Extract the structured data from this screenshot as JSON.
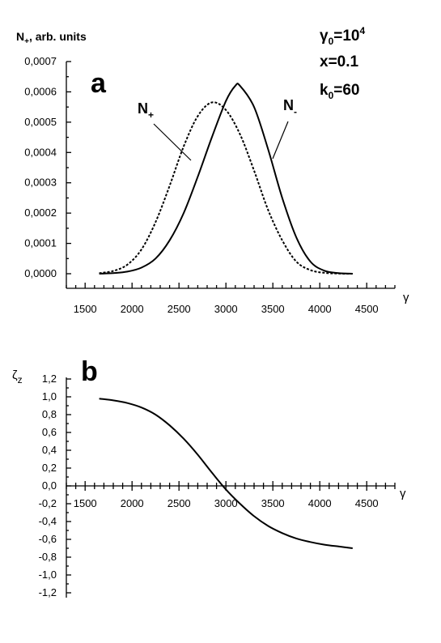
{
  "chart_data": [
    {
      "type": "line",
      "panel_label": "a",
      "ylabel_main": "N",
      "ylabel_sub": "+",
      "ylabel_rest": ", arb. units",
      "xlabel": "γ",
      "xlim": [
        1300,
        4800
      ],
      "ylim": [
        0,
        0.0007
      ],
      "xticks": [
        "1500",
        "2000",
        "2500",
        "3000",
        "3500",
        "4000",
        "4500"
      ],
      "xtick_values": [
        1500,
        2000,
        2500,
        3000,
        3500,
        4000,
        4500
      ],
      "yticks": [
        "0,0000",
        "0,0001",
        "0,0002",
        "0,0003",
        "0,0004",
        "0,0005",
        "0,0006",
        "0,0007"
      ],
      "ytick_values": [
        0,
        0.0001,
        0.0002,
        0.0003,
        0.0004,
        0.0005,
        0.0006,
        0.0007
      ],
      "params": {
        "gamma0": {
          "main": "γ",
          "sub": "0",
          "eq": "=10",
          "sup": "4"
        },
        "x": "x=0.1",
        "k0": {
          "main": "k",
          "sub": "0",
          "eq": "=60"
        }
      },
      "series": [
        {
          "name": "N+",
          "label_main": "N",
          "label_sub": "+",
          "style": "dashed",
          "x": [
            1650,
            1800,
            1950,
            2100,
            2250,
            2400,
            2550,
            2700,
            2850,
            3000,
            3150,
            3300,
            3450,
            3600,
            3750,
            3900,
            4050,
            4200,
            4350
          ],
          "y": [
            2e-06,
            9e-06,
            3e-05,
            8e-05,
            0.00017,
            0.00029,
            0.00042,
            0.00052,
            0.000565,
            0.00054,
            0.00046,
            0.00034,
            0.00021,
            0.00011,
            4e-05,
            1.2e-05,
            3e-06,
            5e-07,
            0.0
          ]
        },
        {
          "name": "N-",
          "label_main": "N",
          "label_sub": "-",
          "style": "solid",
          "x": [
            1650,
            1800,
            1950,
            2100,
            2250,
            2400,
            2550,
            2700,
            2850,
            3000,
            3100,
            3150,
            3300,
            3450,
            3600,
            3750,
            3900,
            4050,
            4200,
            4350
          ],
          "y": [
            0.0,
            2e-06,
            7e-06,
            2e-05,
            5e-05,
            0.00011,
            0.0002,
            0.00032,
            0.00045,
            0.00057,
            0.00062,
            0.00062,
            0.00055,
            0.00041,
            0.00025,
            0.00012,
            4e-05,
            1e-05,
            2e-06,
            0.0
          ]
        }
      ]
    },
    {
      "type": "line",
      "panel_label": "b",
      "ylabel_main": "ζ",
      "ylabel_sub": "z",
      "xlabel": "γ",
      "xlim": [
        1300,
        4800
      ],
      "ylim": [
        -1.3,
        1.3
      ],
      "xticks": [
        "1500",
        "2000",
        "2500",
        "3000",
        "3500",
        "4000",
        "4500"
      ],
      "xtick_values": [
        1500,
        2000,
        2500,
        3000,
        3500,
        4000,
        4500
      ],
      "yticks": [
        "1,2",
        "1,0",
        "0,8",
        "0,6",
        "0,4",
        "0,2",
        "0,0",
        "-0,2",
        "-0,4",
        "-0,6",
        "-0,8",
        "-1,0",
        "-1,2"
      ],
      "ytick_values": [
        1.2,
        1.0,
        0.8,
        0.6,
        0.4,
        0.2,
        0.0,
        -0.2,
        -0.4,
        -0.6,
        -0.8,
        -1.0,
        -1.2
      ],
      "series": [
        {
          "name": "ζz",
          "style": "solid",
          "x": [
            1650,
            1800,
            1950,
            2100,
            2250,
            2400,
            2550,
            2700,
            2850,
            3000,
            3150,
            3300,
            3450,
            3600,
            3750,
            3900,
            4050,
            4200,
            4350
          ],
          "y": [
            0.98,
            0.96,
            0.93,
            0.88,
            0.8,
            0.68,
            0.53,
            0.35,
            0.15,
            -0.04,
            -0.2,
            -0.34,
            -0.45,
            -0.53,
            -0.59,
            -0.63,
            -0.66,
            -0.68,
            -0.7
          ]
        }
      ]
    }
  ]
}
